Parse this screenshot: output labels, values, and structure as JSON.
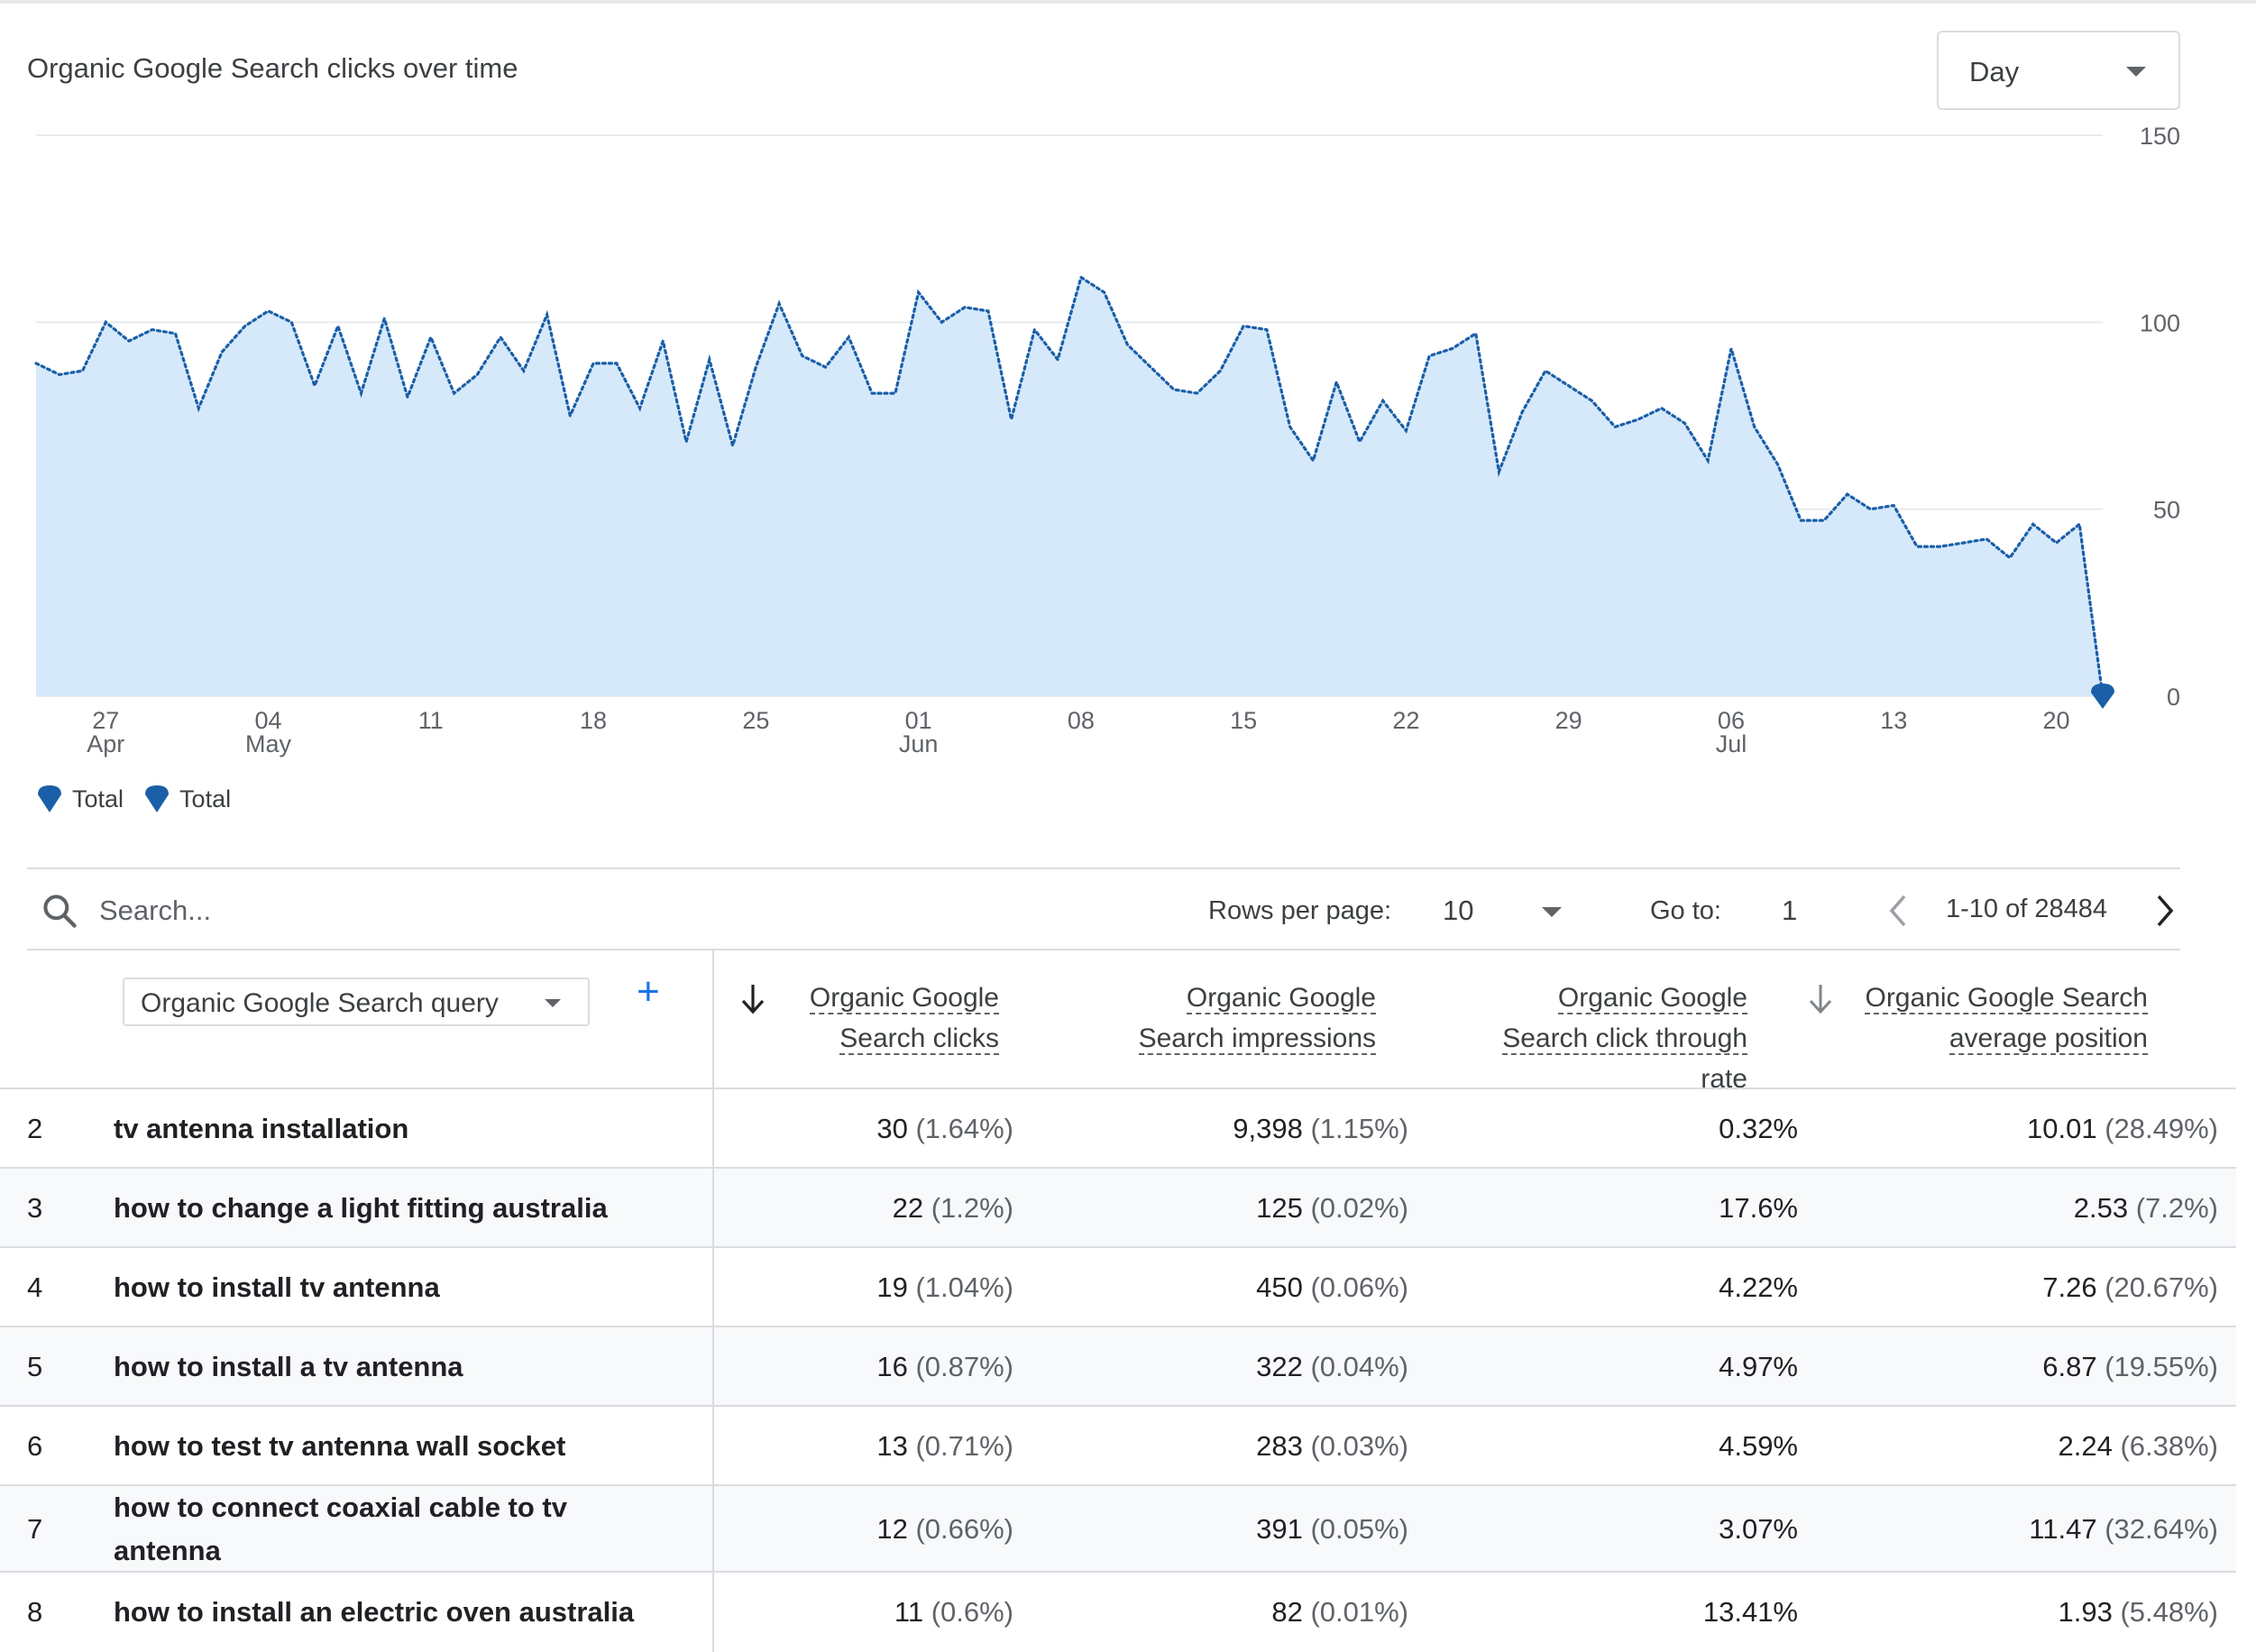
{
  "card": {
    "title": "Organic Google Search clicks over time",
    "granularity": "Day"
  },
  "chart_data": {
    "type": "area",
    "title": "Organic Google Search clicks over time",
    "ylim": [
      0,
      150
    ],
    "y_ticks": [
      "150",
      "100",
      "50",
      "0"
    ],
    "x_ticks": [
      {
        "day": "27",
        "month": "Apr"
      },
      {
        "day": "04",
        "month": "May"
      },
      {
        "day": "11",
        "month": ""
      },
      {
        "day": "18",
        "month": ""
      },
      {
        "day": "25",
        "month": ""
      },
      {
        "day": "01",
        "month": "Jun"
      },
      {
        "day": "08",
        "month": ""
      },
      {
        "day": "15",
        "month": ""
      },
      {
        "day": "22",
        "month": ""
      },
      {
        "day": "29",
        "month": ""
      },
      {
        "day": "06",
        "month": "Jul"
      },
      {
        "day": "13",
        "month": ""
      },
      {
        "day": "20",
        "month": ""
      }
    ],
    "x_start": "2023-04-24",
    "x_end": "2023-07-23",
    "series": [
      {
        "name": "Total",
        "values": [
          89,
          86,
          87,
          100,
          95,
          98,
          97,
          77,
          92,
          99,
          103,
          100,
          83,
          99,
          81,
          101,
          80,
          96,
          81,
          86,
          96,
          87,
          102,
          75,
          89,
          89,
          77,
          95,
          68,
          90,
          67,
          88,
          105,
          91,
          88,
          96,
          81,
          81,
          108,
          100,
          104,
          103,
          74,
          98,
          90,
          112,
          108,
          94,
          88,
          82,
          81,
          87,
          99,
          98,
          72,
          63,
          84,
          68,
          79,
          71,
          91,
          93,
          97,
          60,
          76,
          87,
          83,
          79,
          72,
          74,
          77,
          73,
          63,
          93,
          72,
          62,
          47,
          47,
          54,
          50,
          51,
          40,
          40,
          41,
          42,
          37,
          46,
          41,
          46,
          0
        ]
      }
    ],
    "grid": true,
    "legend": [
      "Total",
      "Total"
    ],
    "legend_position": "bottom-left",
    "colors": {
      "line": "#1a5fa8",
      "fill": "#d6e9fb"
    }
  },
  "table": {
    "search_placeholder": "Search...",
    "rows_per_page_label": "Rows per page:",
    "rows_per_page": "10",
    "goto_label": "Go to:",
    "goto_value": "1",
    "range_label": "1-10 of 28484",
    "dimension": "Organic Google Search query",
    "columns": [
      {
        "line1": "Organic Google",
        "line2": "Search clicks",
        "line3": ""
      },
      {
        "line1": "Organic Google",
        "line2": "Search impressions",
        "line3": ""
      },
      {
        "line1": "Organic Google",
        "line2": "Search click through",
        "line3": "rate"
      },
      {
        "line1": "Organic Google Search",
        "line2": "average position",
        "line3": ""
      }
    ],
    "rows": [
      {
        "idx": "2",
        "query": "tv antenna installation",
        "clicks": "30",
        "clicks_pct": "(1.64%)",
        "impr": "9,398",
        "impr_pct": "(1.15%)",
        "ctr": "0.32%",
        "pos": "10.01",
        "pos_pct": "(28.49%)"
      },
      {
        "idx": "3",
        "query": "how to change a light fitting australia",
        "clicks": "22",
        "clicks_pct": "(1.2%)",
        "impr": "125",
        "impr_pct": "(0.02%)",
        "ctr": "17.6%",
        "pos": "2.53",
        "pos_pct": "(7.2%)"
      },
      {
        "idx": "4",
        "query": "how to install tv antenna",
        "clicks": "19",
        "clicks_pct": "(1.04%)",
        "impr": "450",
        "impr_pct": "(0.06%)",
        "ctr": "4.22%",
        "pos": "7.26",
        "pos_pct": "(20.67%)"
      },
      {
        "idx": "5",
        "query": "how to install a tv antenna",
        "clicks": "16",
        "clicks_pct": "(0.87%)",
        "impr": "322",
        "impr_pct": "(0.04%)",
        "ctr": "4.97%",
        "pos": "6.87",
        "pos_pct": "(19.55%)"
      },
      {
        "idx": "6",
        "query": "how to test tv antenna wall socket",
        "clicks": "13",
        "clicks_pct": "(0.71%)",
        "impr": "283",
        "impr_pct": "(0.03%)",
        "ctr": "4.59%",
        "pos": "2.24",
        "pos_pct": "(6.38%)"
      },
      {
        "idx": "7",
        "query": "how to connect coaxial cable to tv antenna",
        "clicks": "12",
        "clicks_pct": "(0.66%)",
        "impr": "391",
        "impr_pct": "(0.05%)",
        "ctr": "3.07%",
        "pos": "11.47",
        "pos_pct": "(32.64%)"
      },
      {
        "idx": "8",
        "query": "how to install an electric oven australia",
        "clicks": "11",
        "clicks_pct": "(0.6%)",
        "impr": "82",
        "impr_pct": "(0.01%)",
        "ctr": "13.41%",
        "pos": "1.93",
        "pos_pct": "(5.48%)"
      }
    ]
  }
}
